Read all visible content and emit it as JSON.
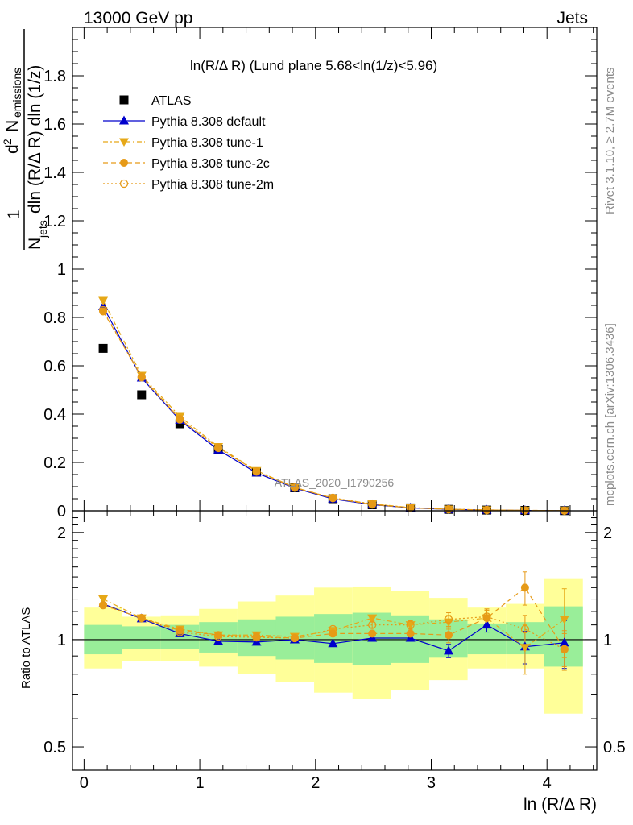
{
  "header": {
    "left": "13000 GeV pp",
    "right": "Jets"
  },
  "side_labels": {
    "rivet": "Rivet 3.1.10, ≥ 2.7M events",
    "mcplots": "mcplots.cern.ch [arXiv:1306.3436]"
  },
  "watermark": "ATLAS_2020_I1790256",
  "chart_data": [
    {
      "type": "line",
      "title": "ln(R/Δ R) (Lund plane 5.68<ln(1/z)<5.96)",
      "ylabel": "1/N_jets d²N_emissions / dln(R/Δ R) dln(1/z)",
      "ylabel_parts": {
        "one": "1",
        "d2": "d",
        "sup": "2",
        "n": "N",
        "emissions": "emissions",
        "njets_n": "N",
        "jets": "jets",
        "rest": "dln (R/Δ R) dln (1/z)"
      },
      "ylim": [
        0,
        2.0
      ],
      "y_ticks": [
        0,
        0.2,
        0.4,
        0.6,
        0.8,
        1,
        1.2,
        1.4,
        1.6,
        1.8
      ],
      "y_tick_labels": [
        "0",
        "0.2",
        "0.4",
        "0.6",
        "0.8",
        "1",
        "1.2",
        "1.4",
        "1.6",
        "1.8"
      ],
      "xlim": [
        -0.1,
        4.43
      ],
      "x": [
        0.165,
        0.497,
        0.828,
        1.16,
        1.49,
        1.82,
        2.15,
        2.49,
        2.82,
        3.15,
        3.48,
        3.81,
        4.15
      ],
      "legend": [
        "ATLAS",
        "Pythia 8.308 default",
        "Pythia 8.308 tune-1",
        "Pythia 8.308 tune-2c",
        "Pythia 8.308 tune-2m"
      ],
      "series": [
        {
          "name": "ATLAS",
          "color": "#000000",
          "values": [
            0.672,
            0.48,
            0.36,
            0.255,
            0.16,
            0.095,
            0.05,
            0.025,
            0.012,
            0.006,
            0.003,
            0.0015,
            0.0007
          ]
        },
        {
          "name": "Pythia 8.308 default",
          "color": "#0000cc",
          "values": [
            0.845,
            0.55,
            0.375,
            0.252,
            0.157,
            0.094,
            0.049,
            0.0253,
            0.0121,
            0.0056,
            0.0033,
            0.0014,
            0.0007
          ]
        },
        {
          "name": "Pythia 8.308 tune-1",
          "color": "#e6a817",
          "values": [
            0.87,
            0.56,
            0.39,
            0.265,
            0.166,
            0.097,
            0.052,
            0.0288,
            0.0133,
            0.0067,
            0.0035,
            0.0014,
            0.0008
          ]
        },
        {
          "name": "Pythia 8.308 tune-2c",
          "color": "#e69a17",
          "values": [
            0.825,
            0.555,
            0.38,
            0.262,
            0.163,
            0.096,
            0.052,
            0.026,
            0.0125,
            0.0061,
            0.0035,
            0.0021,
            0.00066
          ]
        },
        {
          "name": "Pythia 8.308 tune-2m",
          "color": "#e69a17",
          "values": [
            0.83,
            0.552,
            0.378,
            0.26,
            0.162,
            0.096,
            0.0535,
            0.0275,
            0.0132,
            0.0067,
            0.0035,
            0.0016,
            0.00066
          ]
        }
      ]
    },
    {
      "type": "line",
      "ylabel": "Ratio to ATLAS",
      "xlabel": "ln (R/Δ R)",
      "y_scale": "log",
      "ylim": [
        0.43,
        2.3
      ],
      "y_ticks": [
        0.5,
        1,
        2
      ],
      "y_tick_labels": [
        "0.5",
        "1",
        "2"
      ],
      "xlim": [
        -0.1,
        4.43
      ],
      "x_ticks": [
        0,
        1,
        2,
        3,
        4
      ],
      "x_tick_labels": [
        "0",
        "1",
        "2",
        "3",
        "4"
      ],
      "bin_edges": [
        0,
        0.331,
        0.663,
        0.994,
        1.326,
        1.657,
        1.988,
        2.32,
        2.651,
        2.983,
        3.314,
        3.645,
        3.977,
        4.31
      ],
      "band_inner": {
        "low": [
          0.91,
          0.94,
          0.94,
          0.92,
          0.9,
          0.88,
          0.86,
          0.85,
          0.86,
          0.89,
          0.91,
          0.91,
          0.84
        ],
        "high": [
          1.1,
          1.09,
          1.1,
          1.12,
          1.14,
          1.16,
          1.18,
          1.19,
          1.17,
          1.14,
          1.11,
          1.12,
          1.24
        ]
      },
      "band_outer": {
        "low": [
          0.83,
          0.87,
          0.87,
          0.84,
          0.8,
          0.76,
          0.71,
          0.68,
          0.72,
          0.77,
          0.83,
          0.83,
          0.62
        ],
        "high": [
          1.23,
          1.16,
          1.17,
          1.22,
          1.28,
          1.33,
          1.4,
          1.41,
          1.37,
          1.31,
          1.23,
          1.26,
          1.48
        ]
      },
      "x": [
        0.165,
        0.497,
        0.828,
        1.16,
        1.49,
        1.82,
        2.15,
        2.49,
        2.82,
        3.15,
        3.48,
        3.81,
        4.15
      ],
      "series": [
        {
          "name": "Pythia 8.308 default",
          "color": "#0000cc",
          "values": [
            1.26,
            1.145,
            1.04,
            0.99,
            0.985,
            1.0,
            0.975,
            1.01,
            1.01,
            0.93,
            1.1,
            0.955,
            0.98
          ],
          "err": [
            0.01,
            0.01,
            0.01,
            0.01,
            0.01,
            0.01,
            0.01,
            0.01,
            0.02,
            0.04,
            0.05,
            0.1,
            0.15
          ]
        },
        {
          "name": "Pythia 8.308 tune-1",
          "color": "#e6a817",
          "values": [
            1.3,
            1.15,
            1.07,
            1.03,
            1.03,
            1.02,
            1.06,
            1.15,
            1.1,
            1.12,
            1.15,
            0.95,
            1.14
          ],
          "err": [
            0.01,
            0.01,
            0.01,
            0.01,
            0.01,
            0.01,
            0.01,
            0.02,
            0.03,
            0.05,
            0.06,
            0.15,
            0.25
          ]
        },
        {
          "name": "Pythia 8.308 tune-2c",
          "color": "#e69a17",
          "values": [
            1.25,
            1.15,
            1.06,
            1.03,
            1.02,
            1.01,
            1.04,
            1.04,
            1.04,
            1.03,
            1.15,
            1.4,
            0.94
          ],
          "err": [
            0.01,
            0.01,
            0.01,
            0.01,
            0.01,
            0.01,
            0.01,
            0.02,
            0.03,
            0.05,
            0.06,
            0.15,
            0.12
          ]
        },
        {
          "name": "Pythia 8.308 tune-2m",
          "color": "#e69a17",
          "values": [
            1.25,
            1.15,
            1.05,
            1.02,
            1.015,
            1.01,
            1.07,
            1.1,
            1.1,
            1.14,
            1.16,
            1.07,
            0.94
          ],
          "err": [
            0.01,
            0.01,
            0.01,
            0.01,
            0.01,
            0.01,
            0.01,
            0.02,
            0.03,
            0.05,
            0.06,
            0.1,
            0.1
          ]
        }
      ]
    }
  ]
}
